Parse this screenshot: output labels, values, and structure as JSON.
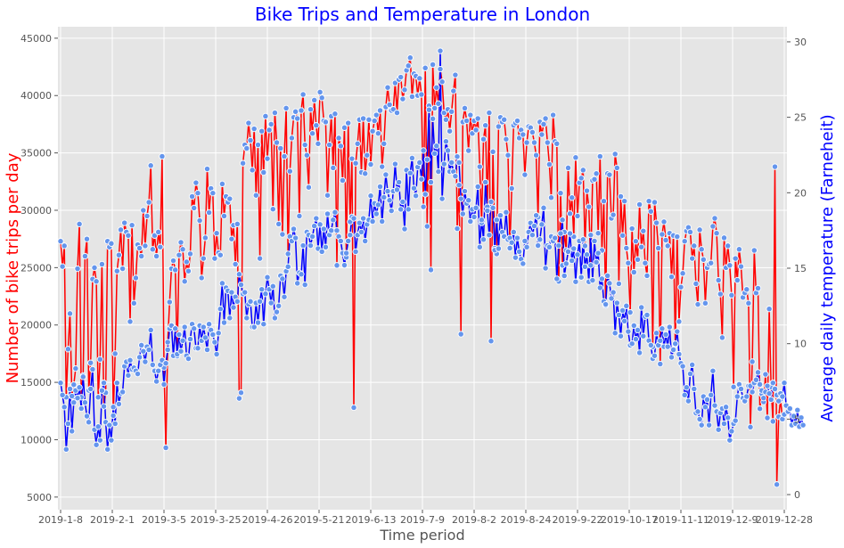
{
  "chart_data": {
    "type": "line",
    "title": "Bike Trips and Temperature in London",
    "xlabel": "Time period",
    "ylabel": "Number of bike trips per day",
    "ylabel_right": "Average daily temperature (Farneheit)",
    "x_tick_labels": [
      "2019-1-8",
      "2019-2-1",
      "2019-3-5",
      "2019-3-25",
      "2019-4-26",
      "2019-5-21",
      "2019-6-13",
      "2019-7-9",
      "2019-8-2",
      "2019-8-24",
      "2019-9-22",
      "2019-10-17",
      "2019-11-11",
      "2019-12-9",
      "2019-12-28"
    ],
    "ylim_left": [
      3900,
      46000
    ],
    "ylim_right": [
      -1,
      31
    ],
    "y_ticks_left": [
      "5000",
      "10000",
      "15000",
      "20000",
      "25000",
      "30000",
      "35000",
      "40000",
      "45000"
    ],
    "y_ticks_right": [
      "0",
      "5",
      "10",
      "15",
      "20",
      "25",
      "30"
    ],
    "grid": true,
    "colors": {
      "trips": "#ff0000",
      "temperature": "#0000ff",
      "marker": "#6495ed",
      "background": "#e5e5e5",
      "title": "#0000ff"
    },
    "series": [
      {
        "axis": "left",
        "values": [
          27300,
          25100,
          26900,
          13700,
          17900,
          21000,
          13800,
          14800,
          16200,
          24900,
          28800,
          13700,
          15600,
          26000,
          27500,
          14300,
          16700,
          24000,
          25000,
          23800,
          13700,
          17000,
          25300,
          12900,
          14100,
          27300,
          26800,
          27100,
          12100,
          17500,
          24700,
          26100,
          28300,
          24900,
          28900,
          28100,
          27800,
          20300,
          28700,
          21900,
          24100,
          27000,
          26700,
          26000,
          30000,
          26900,
          29500,
          30700,
          33900,
          26600,
          27800,
          26000,
          28100,
          26800,
          34700,
          16300,
          9300,
          18500,
          22000,
          24900,
          25600,
          24800,
          17300,
          26100,
          27200,
          26600,
          23800,
          25500,
          24700,
          26200,
          31200,
          30200,
          32400,
          31500,
          29100,
          24100,
          25800,
          27600,
          33600,
          29800,
          31900,
          31500,
          25800,
          28000,
          26300,
          26100,
          32300,
          29500,
          31200,
          30700,
          31000,
          27500,
          28700,
          25300,
          28800,
          13600,
          14100,
          34100,
          35700,
          35400,
          37600,
          36100,
          33500,
          37100,
          31300,
          35700,
          25800,
          36900,
          33300,
          38200,
          34500,
          37000,
          37500,
          30100,
          38500,
          35900,
          28800,
          35400,
          27900,
          34700,
          38900,
          26200,
          33400,
          36300,
          38100,
          38600,
          38000,
          29500,
          38700,
          40100,
          35700,
          34800,
          32000,
          38800,
          36700,
          39600,
          37400,
          35800,
          40300,
          39800,
          37800,
          37700,
          31300,
          35700,
          38200,
          33700,
          38400,
          25200,
          36300,
          35600,
          32600,
          37200,
          25900,
          37600,
          29000,
          34500,
          12800,
          34100,
          35800,
          37900,
          33300,
          38000,
          33200,
          34800,
          37900,
          34000,
          36900,
          37800,
          38300,
          36700,
          38700,
          33800,
          35800,
          39000,
          40700,
          39200,
          38700,
          38800,
          41100,
          38500,
          41400,
          41600,
          39700,
          40500,
          42200,
          42600,
          43300,
          39900,
          41900,
          41700,
          40000,
          41500,
          40100,
          30300,
          42400,
          28600,
          39100,
          24800,
          42700,
          38900,
          40700,
          39300,
          42300,
          41200,
          38500,
          37900,
          38800,
          36900,
          38600,
          40400,
          41800,
          28400,
          32200,
          19200,
          37700,
          38900,
          37800,
          35200,
          38300,
          36700,
          37800,
          37000,
          38000,
          33800,
          28900,
          36200,
          37400,
          30300,
          38500,
          18600,
          35100,
          26700,
          26200,
          37300,
          38100,
          37700,
          37900,
          36200,
          34800,
          26700,
          31900,
          37400,
          37600,
          37800,
          36300,
          37000,
          36600,
          33100,
          35900,
          37300,
          37200,
          36800,
          35900,
          34800,
          29400,
          37700,
          36600,
          37500,
          38000,
          35900,
          34000,
          31100,
          38300,
          36000,
          35800,
          23800,
          31500,
          25200,
          28100,
          26500,
          33700,
          29700,
          31100,
          27700,
          34600,
          29500,
          32400,
          32800,
          33500,
          26900,
          31700,
          30300,
          25200,
          32600,
          32700,
          33200,
          28000,
          34700,
          26500,
          30800,
          21700,
          33200,
          33100,
          29300,
          29600,
          34900,
          33700,
          23600,
          31200,
          27800,
          30800,
          26700,
          25400,
          21100,
          28400,
          24600,
          27300,
          25700,
          30500,
          26800,
          28200,
          25400,
          24300,
          30800,
          29900,
          18100,
          30700,
          28900,
          26700,
          16600,
          27900,
          29000,
          27400,
          26900,
          28000,
          24200,
          27800,
          18300,
          27700,
          20300,
          23300,
          24500,
          27300,
          28200,
          28500,
          28100,
          25800,
          26900,
          23600,
          21800,
          28300,
          26600,
          25700,
          21900,
          25000,
          25300,
          25400,
          28600,
          29300,
          28000,
          23900,
          22700,
          18900,
          27600,
          25000,
          26900,
          25200,
          22600,
          14600,
          25800,
          23900,
          26600,
          25100,
          22400,
          22800,
          23100,
          21900,
          11100,
          16800,
          26500,
          22800,
          23200,
          12700,
          14000,
          13300,
          15700,
          11900,
          21400,
          14600,
          11600,
          33800,
          6100,
          12000,
          13500,
          11800,
          12200
        ]
      },
      {
        "axis": "right",
        "values": [
          7.4,
          6.6,
          5.8,
          3.0,
          4.7,
          7.0,
          4.2,
          6.1,
          6.9,
          6.4,
          7.1,
          5.7,
          7.8,
          6.1,
          5.2,
          4.8,
          7.0,
          8.3,
          4.3,
          3.3,
          4.5,
          3.6,
          6.9,
          7.4,
          4.8,
          3.0,
          4.6,
          3.6,
          5.8,
          4.7,
          7.4,
          6.0,
          6.7,
          6.8,
          8.5,
          8.8,
          7.9,
          8.9,
          8.3,
          8.4,
          8.2,
          8.0,
          9.1,
          9.9,
          9.5,
          8.8,
          9.8,
          9.6,
          10.9,
          8.6,
          8.2,
          7.5,
          8.2,
          8.6,
          8.9,
          7.3,
          8.7,
          9.6,
          11.0,
          11.2,
          9.2,
          11.0,
          9.3,
          10.6,
          9.5,
          10.2,
          11.1,
          9.2,
          9.0,
          10.3,
          11.3,
          11.0,
          9.7,
          9.7,
          11.2,
          10.2,
          11.1,
          10.4,
          9.6,
          11.3,
          10.9,
          10.6,
          10.1,
          9.3,
          10.7,
          12.3,
          14.0,
          11.4,
          13.7,
          13.5,
          11.7,
          13.4,
          12.4,
          13.1,
          12.8,
          14.6,
          13.9,
          13.3,
          13.4,
          11.7,
          12.6,
          12.8,
          11.1,
          11.1,
          12.7,
          11.4,
          12.8,
          13.6,
          11.3,
          13.3,
          14.4,
          13.6,
          12.7,
          13.8,
          11.7,
          12.1,
          12.5,
          14.5,
          14.3,
          13.1,
          14.8,
          15.1,
          17.1,
          16.8,
          17.6,
          17.0,
          14.0,
          14.7,
          14.6,
          16.5,
          13.9,
          17.4,
          17.2,
          16.5,
          17.1,
          17.8,
          18.3,
          16.3,
          17.9,
          16.1,
          17.6,
          16.4,
          18.6,
          17.2,
          17.5,
          18.2,
          18.7,
          17.5,
          17.1,
          16.8,
          16.0,
          15.2,
          16.0,
          16.8,
          17.2,
          18.4,
          18.3,
          16.1,
          17.2,
          18.0,
          17.4,
          18.3,
          16.8,
          17.9,
          18.2,
          19.8,
          18.1,
          19.3,
          18.6,
          19.2,
          20.4,
          18.1,
          19.7,
          21.2,
          20.1,
          19.5,
          18.8,
          20.1,
          21.9,
          20.2,
          20.7,
          18.9,
          19.4,
          17.6,
          21.5,
          18.9,
          21.3,
          22.3,
          20.3,
          19.8,
          21.7,
          22.0,
          20.9,
          22.8,
          19.9,
          22.2,
          25.5,
          20.7,
          24.9,
          22.6,
          23.1,
          21.4,
          29.4,
          19.6,
          21.9,
          23.4,
          22.8,
          21.4,
          22.0,
          21.4,
          21.1,
          22.4,
          22.0,
          19.6,
          18.6,
          20.1,
          19.3,
          19.5,
          18.1,
          18.9,
          18.4,
          19.0,
          20.4,
          16.4,
          18.2,
          16.9,
          20.7,
          18.8,
          17.2,
          19.4,
          19.0,
          16.2,
          18.2,
          16.3,
          18.5,
          17.4,
          17.1,
          18.7,
          16.9,
          17.0,
          16.7,
          17.4,
          15.7,
          17.0,
          16.1,
          15.6,
          15.3,
          16.8,
          16.4,
          17.4,
          18.0,
          17.2,
          17.8,
          18.5,
          16.5,
          16.9,
          17.9,
          19.0,
          15.0,
          16.5,
          16.4,
          17.1,
          16.8,
          17.0,
          14.3,
          16.5,
          17.3,
          18.2,
          14.5,
          15.3,
          16.1,
          17.3,
          15.5,
          16.3,
          14.1,
          15.9,
          16.8,
          14.4,
          16.9,
          15.1,
          15.9,
          14.1,
          17.2,
          14.2,
          16.8,
          15.4,
          16.0,
          13.7,
          14.3,
          12.8,
          12.6,
          14.5,
          14.0,
          13.0,
          13.4,
          10.7,
          12.7,
          11.9,
          10.5,
          12.2,
          11.5,
          12.5,
          10.8,
          9.9,
          10.0,
          11.2,
          10.3,
          10.9,
          9.4,
          12.4,
          10.5,
          11.8,
          11.9,
          10.2,
          9.9,
          9.0,
          9.2,
          10.7,
          9.9,
          10.2,
          11.0,
          9.8,
          10.6,
          9.8,
          11.1,
          9.1,
          9.6,
          10.0,
          10.8,
          9.3,
          8.7,
          8.5,
          6.6,
          7.1,
          6.2,
          8.0,
          8.6,
          7.0,
          5.4,
          5.5,
          5.0,
          4.6,
          6.5,
          5.8,
          6.3,
          4.6,
          6.6,
          8.2,
          5.9,
          5.5,
          4.3,
          5.4,
          5.7,
          4.7,
          5.8,
          5.1,
          3.6,
          4.2,
          4.7,
          4.9,
          6.5,
          7.3,
          7.0,
          6.4,
          6.2,
          6.5,
          7.2,
          7.2,
          6.8,
          7.4,
          7.6,
          8.1,
          7.3,
          6.9,
          6.4,
          6.8,
          7.2,
          6.7,
          6.3,
          7.4,
          7.0,
          6.6,
          6.2,
          6.7,
          6.5,
          7.4,
          5.9,
          5.5,
          5.7,
          4.6,
          5.2,
          4.7,
          5.6,
          4.5,
          5.1,
          4.6
        ]
      }
    ]
  }
}
